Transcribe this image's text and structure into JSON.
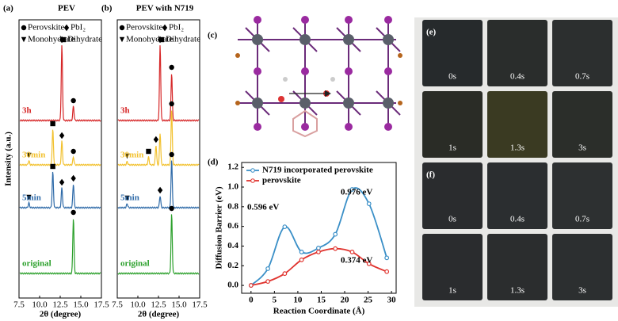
{
  "chart_data": [
    {
      "type": "xrd",
      "panel": "(a)",
      "title": "PEV",
      "legend": [
        "Perovskite",
        "PbI₂",
        "Monohydrate",
        "Dihydrate"
      ],
      "ylabel": "Intensity (a.u.)",
      "xlabel": "2θ (degree)",
      "xlim": [
        7.5,
        17.5
      ],
      "xticks": [
        7.5,
        {
          "value": 10,
          "label": "10.0"
        },
        12.5,
        {
          "value": 15,
          "label": "15.0"
        },
        17.5
      ],
      "series": [
        {
          "name": "3h",
          "color": "#d62728",
          "peaks": [
            {
              "x": 12.7,
              "h": 95,
              "phase": 1
            },
            {
              "x": 14.1,
              "h": 18,
              "phase": 0
            }
          ]
        },
        {
          "name": "30min",
          "color": "#f2c12e",
          "peaks": [
            {
              "x": 8.7,
              "h": 5,
              "phase": 2
            },
            {
              "x": 11.6,
              "h": 45,
              "phase": 3
            },
            {
              "x": 12.7,
              "h": 30,
              "phase": 1
            },
            {
              "x": 14.1,
              "h": 10,
              "phase": 0
            }
          ]
        },
        {
          "name": "5min",
          "color": "#2e6aa8",
          "peaks": [
            {
              "x": 8.7,
              "h": 6,
              "phase": 2
            },
            {
              "x": 11.6,
              "h": 45,
              "phase": 3
            },
            {
              "x": 12.7,
              "h": 25,
              "phase": 1
            },
            {
              "x": 14.1,
              "h": 30,
              "phase": 1
            }
          ]
        },
        {
          "name": "original",
          "color": "#2ca02c",
          "peaks": [
            {
              "x": 14.1,
              "h": 70,
              "phase": 0
            }
          ]
        }
      ]
    },
    {
      "type": "xrd",
      "panel": "(b)",
      "title": "PEV with N719",
      "legend": [
        "Perovskite",
        "PbI₂",
        "Monohydrate",
        "Dihydrate"
      ],
      "xlabel": "2θ (degree)",
      "xlim": [
        7.5,
        17.5
      ],
      "xticks": [
        7.5,
        {
          "value": 10,
          "label": "10.0"
        },
        12.5,
        {
          "value": 15,
          "label": "15.0"
        },
        17.5
      ],
      "series": [
        {
          "name": "3h",
          "color": "#d62728",
          "peaks": [
            {
              "x": 12.7,
              "h": 95,
              "phase": 1
            },
            {
              "x": 14.1,
              "h": 60,
              "phase": 0
            }
          ]
        },
        {
          "name": "30min",
          "color": "#f2c12e",
          "peaks": [
            {
              "x": 8.7,
              "h": 4,
              "phase": 2
            },
            {
              "x": 11.3,
              "h": 10,
              "phase": 3
            },
            {
              "x": 12.2,
              "h": 25,
              "phase": 1
            },
            {
              "x": 12.7,
              "h": 40,
              "phase": null
            },
            {
              "x": 14.1,
              "h": 70,
              "phase": 0
            }
          ]
        },
        {
          "name": "5min",
          "color": "#2e6aa8",
          "peaks": [
            {
              "x": 8.7,
              "h": 5,
              "phase": 2
            },
            {
              "x": 12.7,
              "h": 15,
              "phase": 1
            },
            {
              "x": 14.1,
              "h": 60,
              "phase": 0
            }
          ]
        },
        {
          "name": "original",
          "color": "#2ca02c",
          "peaks": [
            {
              "x": 14.1,
              "h": 75,
              "phase": 0
            }
          ]
        }
      ]
    },
    {
      "type": "line",
      "panel": "(d)",
      "ylabel": "Diffusion Barrier (eV)",
      "xlabel": "Reaction Coordinate (Å)",
      "x": [
        0,
        3.6,
        7.2,
        10.8,
        14.4,
        18,
        21.6,
        25.2,
        29
      ],
      "xlim": [
        -2,
        31
      ],
      "xticks": [
        0,
        5,
        10,
        15,
        20,
        25,
        30
      ],
      "ylim": [
        -0.08,
        1.25
      ],
      "yticks": [
        {
          "value": 0,
          "label": "0.0"
        },
        0.2,
        0.4,
        0.6,
        0.8,
        {
          "value": 1,
          "label": "1.0"
        },
        1.2
      ],
      "series": [
        {
          "name": "N719 incorporated perovskite",
          "color": "#3a8fc7",
          "values": [
            0,
            0.17,
            0.596,
            0.34,
            0.38,
            0.52,
            0.976,
            0.83,
            0.28
          ]
        },
        {
          "name": "perovskite",
          "color": "#e0342f",
          "values": [
            0,
            0.04,
            0.12,
            0.26,
            0.34,
            0.374,
            0.34,
            0.22,
            0.14
          ]
        }
      ],
      "annotations": [
        "0.596 eV",
        "0.976 eV",
        "0.374 eV"
      ]
    }
  ],
  "structure": {
    "panel": "(c)"
  },
  "photos": [
    {
      "panel": "(e)",
      "labels": [
        "0s",
        "0.4s",
        "0.7s",
        "1s",
        "1.3s",
        "3s"
      ]
    },
    {
      "panel": "(f)",
      "labels": [
        "0s",
        "0.4s",
        "0.7s",
        "1s",
        "1.3s",
        "3s"
      ]
    }
  ]
}
